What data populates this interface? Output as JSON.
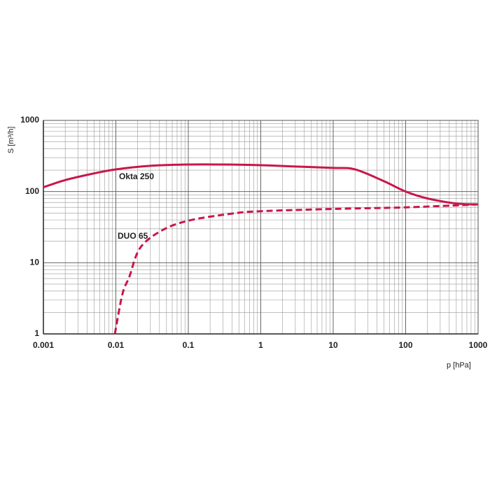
{
  "chart_data": {
    "type": "line",
    "x_label": "p [hPa]",
    "y_label": "S [m³/h]",
    "xscale": "log",
    "yscale": "log",
    "grid": true,
    "minor_grid": true,
    "xlim": [
      0.001,
      1000
    ],
    "ylim": [
      1,
      1000
    ],
    "xticks": [
      0.001,
      0.01,
      0.1,
      1,
      10,
      100,
      1000
    ],
    "yticks": [
      1,
      10,
      100,
      1000
    ],
    "series": [
      {
        "name": "Okta 250",
        "color": "#c8174a",
        "line_style": "solid",
        "x": [
          0.001,
          0.002,
          0.005,
          0.01,
          0.03,
          0.1,
          0.3,
          1,
          3,
          10,
          20,
          50,
          100,
          200,
          500,
          1000
        ],
        "values": [
          115,
          145,
          180,
          205,
          230,
          240,
          240,
          235,
          225,
          215,
          205,
          140,
          100,
          80,
          68,
          66
        ]
      },
      {
        "name": "DUO 65",
        "color": "#c8174a",
        "line_style": "dashed",
        "x": [
          0.0097,
          0.0123,
          0.0154,
          0.0215,
          0.042,
          0.1,
          0.4,
          1,
          10,
          100,
          1000
        ],
        "values": [
          1,
          3.6,
          6.4,
          16,
          28,
          39,
          49,
          53,
          57,
          60,
          66
        ]
      }
    ]
  }
}
